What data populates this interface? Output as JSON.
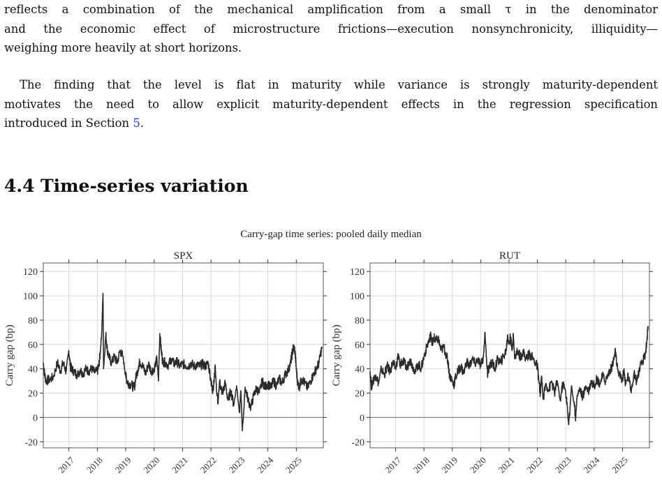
{
  "text": {
    "p1": [
      "reflects a combination of the mechanical amplification from a small τ in the denominator",
      "and the economic effect of microstructure frictions—execution nonsynchronicity, illiquidity—",
      "weighing more heavily at short horizons."
    ],
    "p2": [
      "The finding that the level is flat in maturity while variance is strongly maturity-dependent",
      "motivates the need to allow explicit maturity-dependent effects in the regression specification",
      "introduced in Section "
    ],
    "p2_link": "5",
    "p2_end": "."
  },
  "section": {
    "number": "4.4",
    "title": "Time-series variation"
  },
  "chart_data": {
    "type": "line",
    "title": "Carry-gap time series: pooled daily median",
    "ylabel": "Carry gap (bp)",
    "ylim": [
      -25,
      127
    ],
    "xlim": [
      2016.1,
      2025.95
    ],
    "yticks": [
      -20,
      0,
      20,
      40,
      60,
      80,
      100,
      120
    ],
    "ytick_labels": [
      "-20",
      "0",
      "20",
      "40",
      "60",
      "80",
      "100",
      "120"
    ],
    "xtick_labels": [
      "2017",
      "2018",
      "2019",
      "2020",
      "2021",
      "2022",
      "2023",
      "2024",
      "2025"
    ],
    "grid": true,
    "line_color": "#2b2b2b",
    "panels": [
      {
        "name": "SPX",
        "points": [
          [
            2016.1,
            45
          ],
          [
            2016.15,
            35
          ],
          [
            2016.2,
            30
          ],
          [
            2016.3,
            31
          ],
          [
            2016.45,
            33
          ],
          [
            2016.6,
            45
          ],
          [
            2016.7,
            38
          ],
          [
            2016.8,
            45
          ],
          [
            2016.9,
            38
          ],
          [
            2017.0,
            55
          ],
          [
            2017.05,
            42
          ],
          [
            2017.1,
            40
          ],
          [
            2017.2,
            37
          ],
          [
            2017.3,
            35
          ],
          [
            2017.4,
            39
          ],
          [
            2017.5,
            36
          ],
          [
            2017.6,
            40
          ],
          [
            2017.7,
            38
          ],
          [
            2017.8,
            40
          ],
          [
            2017.9,
            37
          ],
          [
            2018.0,
            38
          ],
          [
            2018.05,
            42
          ],
          [
            2018.1,
            52
          ],
          [
            2018.15,
            68
          ],
          [
            2018.2,
            102
          ],
          [
            2018.22,
            40
          ],
          [
            2018.3,
            68
          ],
          [
            2018.35,
            56
          ],
          [
            2018.4,
            50
          ],
          [
            2018.5,
            45
          ],
          [
            2018.6,
            50
          ],
          [
            2018.7,
            45
          ],
          [
            2018.8,
            55
          ],
          [
            2018.9,
            50
          ],
          [
            2019.0,
            34
          ],
          [
            2019.05,
            30
          ],
          [
            2019.1,
            28
          ],
          [
            2019.2,
            27
          ],
          [
            2019.3,
            24
          ],
          [
            2019.35,
            32
          ],
          [
            2019.45,
            42
          ],
          [
            2019.5,
            46
          ],
          [
            2019.6,
            42
          ],
          [
            2019.7,
            36
          ],
          [
            2019.8,
            44
          ],
          [
            2019.9,
            38
          ],
          [
            2020.0,
            40
          ],
          [
            2020.1,
            48
          ],
          [
            2020.15,
            30
          ],
          [
            2020.2,
            69
          ],
          [
            2020.25,
            55
          ],
          [
            2020.3,
            46
          ],
          [
            2020.4,
            45
          ],
          [
            2020.5,
            43
          ],
          [
            2020.6,
            48
          ],
          [
            2020.7,
            44
          ],
          [
            2020.8,
            46
          ],
          [
            2020.9,
            42
          ],
          [
            2021.0,
            44
          ],
          [
            2021.1,
            43
          ],
          [
            2021.2,
            42
          ],
          [
            2021.3,
            45
          ],
          [
            2021.4,
            42
          ],
          [
            2021.5,
            43
          ],
          [
            2021.6,
            42
          ],
          [
            2021.7,
            44
          ],
          [
            2021.8,
            42
          ],
          [
            2021.9,
            45
          ],
          [
            2022.0,
            30
          ],
          [
            2022.05,
            22
          ],
          [
            2022.1,
            28
          ],
          [
            2022.15,
            42
          ],
          [
            2022.2,
            20
          ],
          [
            2022.25,
            12
          ],
          [
            2022.3,
            30
          ],
          [
            2022.35,
            24
          ],
          [
            2022.4,
            20
          ],
          [
            2022.5,
            28
          ],
          [
            2022.6,
            14
          ],
          [
            2022.7,
            22
          ],
          [
            2022.8,
            10
          ],
          [
            2022.9,
            26
          ],
          [
            2023.0,
            4
          ],
          [
            2023.05,
            22
          ],
          [
            2023.1,
            -11
          ],
          [
            2023.15,
            5
          ],
          [
            2023.2,
            25
          ],
          [
            2023.3,
            15
          ],
          [
            2023.4,
            8
          ],
          [
            2023.5,
            18
          ],
          [
            2023.6,
            24
          ],
          [
            2023.7,
            20
          ],
          [
            2023.8,
            30
          ],
          [
            2023.9,
            25
          ],
          [
            2024.0,
            28
          ],
          [
            2024.1,
            24
          ],
          [
            2024.2,
            30
          ],
          [
            2024.3,
            26
          ],
          [
            2024.4,
            32
          ],
          [
            2024.5,
            28
          ],
          [
            2024.6,
            35
          ],
          [
            2024.7,
            38
          ],
          [
            2024.8,
            45
          ],
          [
            2024.85,
            52
          ],
          [
            2024.9,
            58
          ],
          [
            2024.95,
            55
          ],
          [
            2025.0,
            40
          ],
          [
            2025.05,
            28
          ],
          [
            2025.1,
            25
          ],
          [
            2025.2,
            32
          ],
          [
            2025.3,
            28
          ],
          [
            2025.4,
            24
          ],
          [
            2025.5,
            30
          ],
          [
            2025.6,
            35
          ],
          [
            2025.7,
            40
          ],
          [
            2025.8,
            45
          ],
          [
            2025.9,
            58
          ]
        ]
      },
      {
        "name": "RUT",
        "points": [
          [
            2016.1,
            38
          ],
          [
            2016.15,
            25
          ],
          [
            2016.2,
            30
          ],
          [
            2016.3,
            35
          ],
          [
            2016.4,
            28
          ],
          [
            2016.5,
            40
          ],
          [
            2016.6,
            35
          ],
          [
            2016.7,
            42
          ],
          [
            2016.8,
            38
          ],
          [
            2016.9,
            45
          ],
          [
            2017.0,
            40
          ],
          [
            2017.1,
            52
          ],
          [
            2017.15,
            42
          ],
          [
            2017.2,
            46
          ],
          [
            2017.3,
            45
          ],
          [
            2017.4,
            40
          ],
          [
            2017.5,
            48
          ],
          [
            2017.6,
            42
          ],
          [
            2017.7,
            38
          ],
          [
            2017.8,
            44
          ],
          [
            2017.9,
            40
          ],
          [
            2018.0,
            50
          ],
          [
            2018.1,
            58
          ],
          [
            2018.2,
            65
          ],
          [
            2018.25,
            68
          ],
          [
            2018.3,
            60
          ],
          [
            2018.35,
            66
          ],
          [
            2018.4,
            62
          ],
          [
            2018.5,
            65
          ],
          [
            2018.6,
            55
          ],
          [
            2018.7,
            58
          ],
          [
            2018.8,
            50
          ],
          [
            2018.85,
            45
          ],
          [
            2018.9,
            35
          ],
          [
            2019.0,
            30
          ],
          [
            2019.05,
            26
          ],
          [
            2019.1,
            32
          ],
          [
            2019.2,
            38
          ],
          [
            2019.3,
            42
          ],
          [
            2019.4,
            36
          ],
          [
            2019.5,
            46
          ],
          [
            2019.6,
            42
          ],
          [
            2019.7,
            48
          ],
          [
            2019.8,
            44
          ],
          [
            2019.9,
            48
          ],
          [
            2020.0,
            42
          ],
          [
            2020.1,
            50
          ],
          [
            2020.15,
            70
          ],
          [
            2020.2,
            50
          ],
          [
            2020.25,
            35
          ],
          [
            2020.3,
            42
          ],
          [
            2020.4,
            45
          ],
          [
            2020.5,
            40
          ],
          [
            2020.6,
            48
          ],
          [
            2020.7,
            45
          ],
          [
            2020.8,
            50
          ],
          [
            2020.9,
            55
          ],
          [
            2020.95,
            68
          ],
          [
            2021.0,
            60
          ],
          [
            2021.05,
            66
          ],
          [
            2021.1,
            56
          ],
          [
            2021.15,
            68
          ],
          [
            2021.2,
            48
          ],
          [
            2021.3,
            55
          ],
          [
            2021.4,
            50
          ],
          [
            2021.5,
            54
          ],
          [
            2021.6,
            48
          ],
          [
            2021.7,
            52
          ],
          [
            2021.8,
            50
          ],
          [
            2021.9,
            46
          ],
          [
            2022.0,
            42
          ],
          [
            2022.05,
            30
          ],
          [
            2022.1,
            20
          ],
          [
            2022.15,
            34
          ],
          [
            2022.2,
            15
          ],
          [
            2022.3,
            28
          ],
          [
            2022.4,
            22
          ],
          [
            2022.5,
            30
          ],
          [
            2022.6,
            20
          ],
          [
            2022.7,
            30
          ],
          [
            2022.8,
            14
          ],
          [
            2022.9,
            28
          ],
          [
            2023.0,
            20
          ],
          [
            2023.05,
            10
          ],
          [
            2023.1,
            -6
          ],
          [
            2023.15,
            8
          ],
          [
            2023.2,
            26
          ],
          [
            2023.3,
            10
          ],
          [
            2023.35,
            0
          ],
          [
            2023.4,
            18
          ],
          [
            2023.5,
            24
          ],
          [
            2023.6,
            16
          ],
          [
            2023.7,
            26
          ],
          [
            2023.8,
            22
          ],
          [
            2023.9,
            30
          ],
          [
            2024.0,
            26
          ],
          [
            2024.1,
            32
          ],
          [
            2024.2,
            28
          ],
          [
            2024.3,
            34
          ],
          [
            2024.4,
            30
          ],
          [
            2024.5,
            36
          ],
          [
            2024.6,
            40
          ],
          [
            2024.7,
            48
          ],
          [
            2024.75,
            55
          ],
          [
            2024.8,
            42
          ],
          [
            2024.9,
            35
          ],
          [
            2025.0,
            30
          ],
          [
            2025.05,
            40
          ],
          [
            2025.1,
            26
          ],
          [
            2025.2,
            35
          ],
          [
            2025.3,
            22
          ],
          [
            2025.4,
            36
          ],
          [
            2025.5,
            30
          ],
          [
            2025.6,
            40
          ],
          [
            2025.7,
            45
          ],
          [
            2025.8,
            52
          ],
          [
            2025.85,
            60
          ],
          [
            2025.9,
            75
          ]
        ]
      }
    ]
  }
}
